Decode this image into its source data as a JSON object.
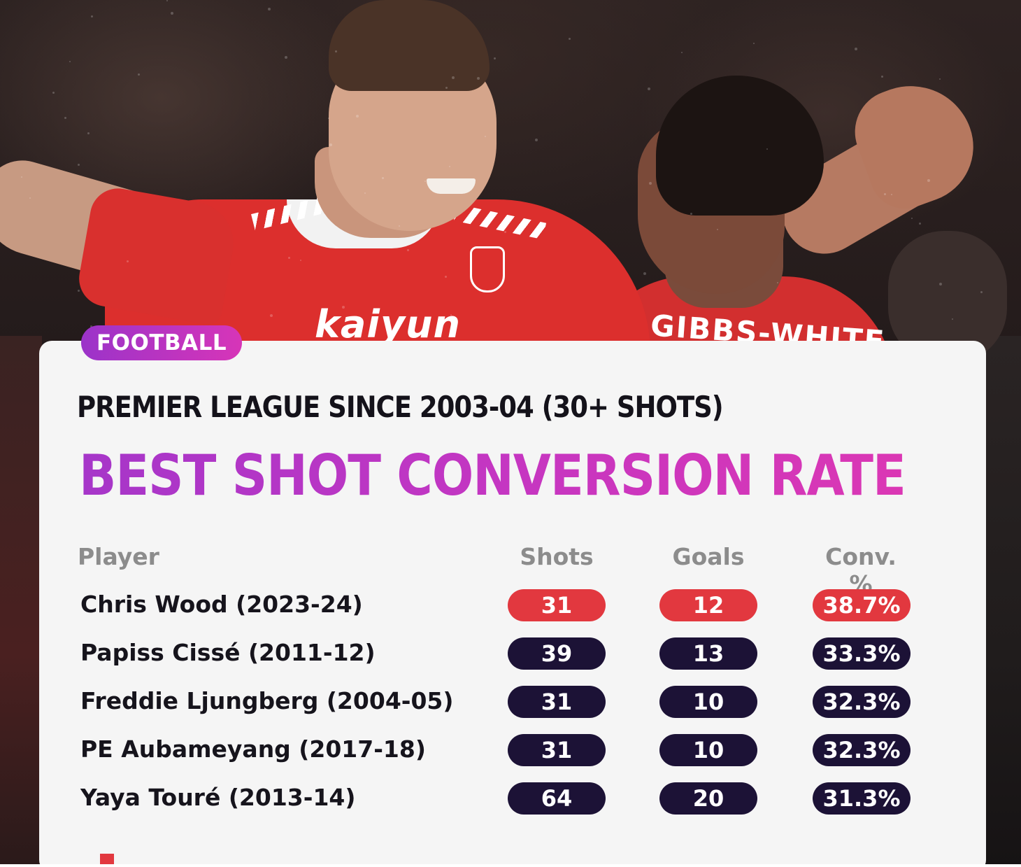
{
  "badge": "FOOTBALL",
  "subtitle": "PREMIER LEAGUE SINCE 2003-04 (30+ SHOTS)",
  "title": "BEST SHOT CONVERSION RATE",
  "photo": {
    "sponsor": "kaiyun",
    "shirt_name": "GIBBS-WHITE"
  },
  "table": {
    "headers": {
      "player": "Player",
      "shots": "Shots",
      "goals": "Goals",
      "conv": "Conv. %"
    },
    "rows": [
      {
        "player": "Chris Wood (2023-24)",
        "shots": "31",
        "goals": "12",
        "conv": "38.7%",
        "highlight": true
      },
      {
        "player": "Papiss Cissé (2011-12)",
        "shots": "39",
        "goals": "13",
        "conv": "33.3%",
        "highlight": false
      },
      {
        "player": "Freddie Ljungberg (2004-05)",
        "shots": "31",
        "goals": "10",
        "conv": "32.3%",
        "highlight": false
      },
      {
        "player": "PE Aubameyang (2017-18)",
        "shots": "31",
        "goals": "10",
        "conv": "32.3%",
        "highlight": false
      },
      {
        "player": "Yaya Touré (2013-14)",
        "shots": "64",
        "goals": "20",
        "conv": "31.3%",
        "highlight": false
      }
    ]
  },
  "colors": {
    "highlight": "#e2383f",
    "pill_dark": "#1c1236",
    "accent_start": "#a636c9",
    "accent_end": "#db37b4"
  }
}
